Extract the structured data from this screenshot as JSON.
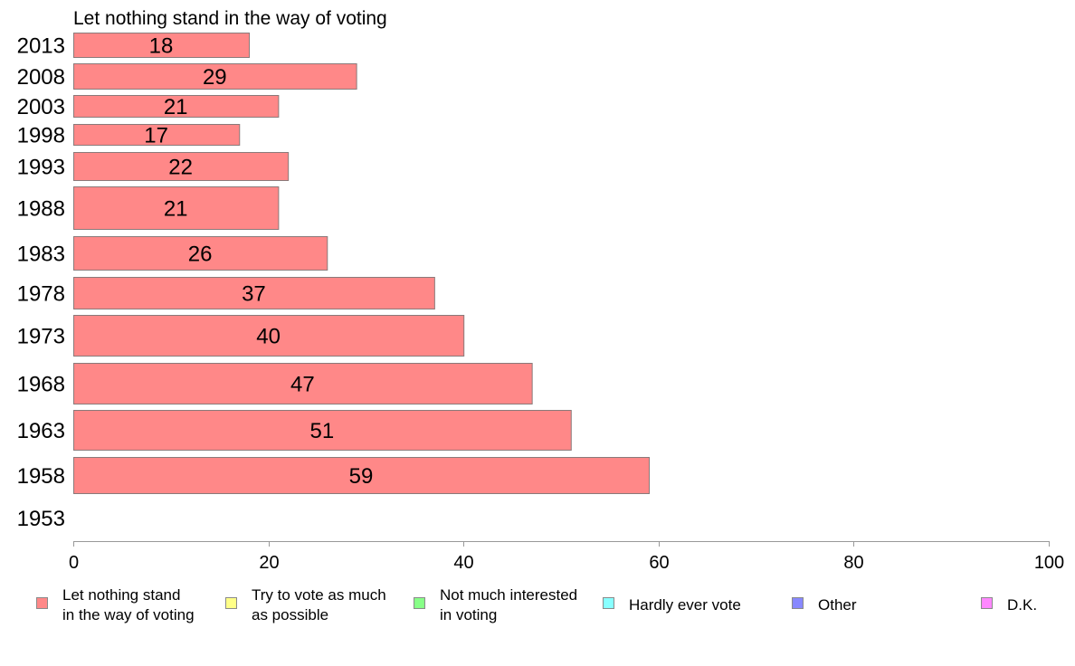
{
  "chart_data": {
    "type": "bar",
    "orientation": "horizontal",
    "title": "Let nothing stand in the way of voting",
    "categories": [
      "2013",
      "2008",
      "2003",
      "1998",
      "1993",
      "1988",
      "1983",
      "1978",
      "1973",
      "1968",
      "1963",
      "1958",
      "1953"
    ],
    "values": [
      18,
      29,
      21,
      17,
      22,
      21,
      26,
      37,
      40,
      47,
      51,
      59,
      null
    ],
    "data_labels": [
      "18",
      "29",
      "21",
      "17",
      "22",
      "21",
      "26",
      "37",
      "40",
      "47",
      "51",
      "59",
      ""
    ],
    "xlim": [
      0,
      100
    ],
    "x_ticks": [
      "0",
      "20",
      "40",
      "60",
      "80",
      "100"
    ],
    "grid": false,
    "bar_color": "#ff8888",
    "legend_position": "bottom",
    "legend": [
      {
        "lines": [
          "Let nothing stand",
          "in the way of voting"
        ],
        "color": "#ff8888"
      },
      {
        "lines": [
          "Try to vote as much",
          "as possible"
        ],
        "color": "#ffff88"
      },
      {
        "lines": [
          "Not much interested",
          "in voting"
        ],
        "color": "#88ff88"
      },
      {
        "lines": [
          "Hardly ever vote"
        ],
        "color": "#88ffff"
      },
      {
        "lines": [
          "Other"
        ],
        "color": "#8888ff"
      },
      {
        "lines": [
          "D.K."
        ],
        "color": "#ff88ff"
      }
    ]
  }
}
